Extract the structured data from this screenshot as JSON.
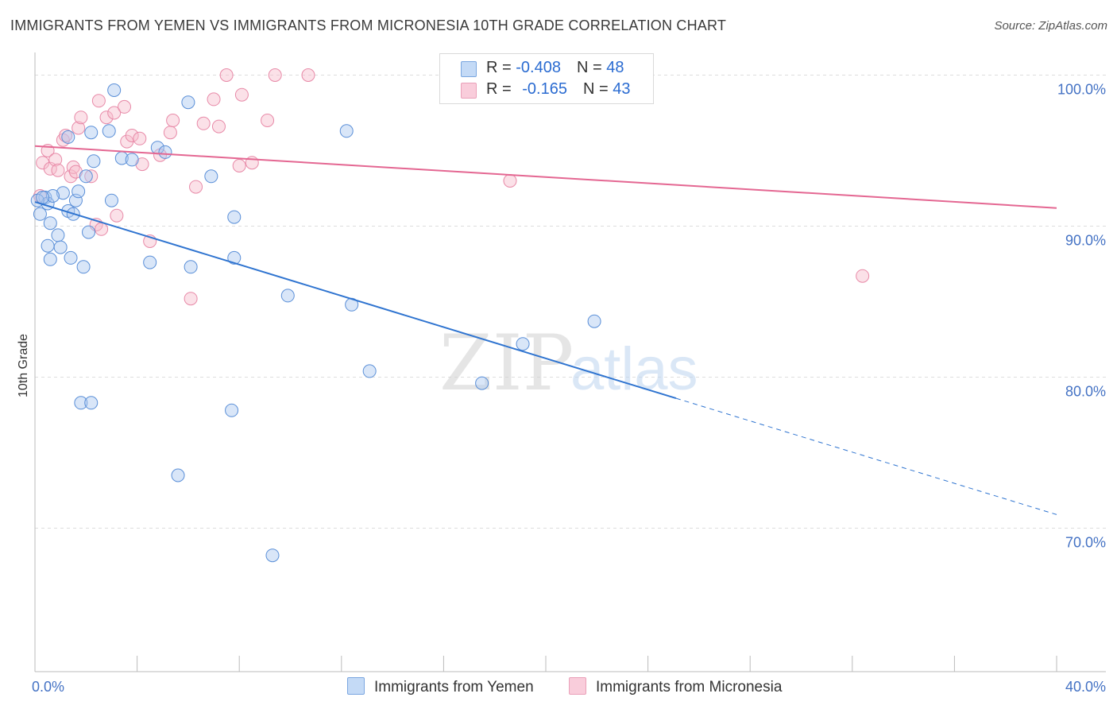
{
  "title": "IMMIGRANTS FROM YEMEN VS IMMIGRANTS FROM MICRONESIA 10TH GRADE CORRELATION CHART",
  "source": "Source: ZipAtlas.com",
  "watermark": {
    "zip": "ZIP",
    "atlas": "atlas"
  },
  "colors": {
    "blue_fill": "#aac8f0",
    "blue_stroke": "#5a8fd8",
    "blue_line": "#2f74d0",
    "pink_fill": "#f6bccd",
    "pink_stroke": "#e88aa8",
    "pink_line": "#e46792",
    "grid": "#dddddd",
    "tick_text": "#4472c4"
  },
  "legend": {
    "rows": [
      {
        "r_label": "R = ",
        "r_value": "-0.408",
        "n_label": "N = ",
        "n_value": "48"
      },
      {
        "r_label": "R = ",
        "r_value": "-0.165",
        "n_label": "N = ",
        "n_value": "43"
      }
    ]
  },
  "series_names": [
    "Immigrants from Yemen",
    "Immigrants from Micronesia"
  ],
  "chart_data": {
    "type": "scatter",
    "title": "IMMIGRANTS FROM YEMEN VS IMMIGRANTS FROM MICRONESIA 10TH GRADE CORRELATION CHART",
    "xlabel": "",
    "ylabel": "10th Grade",
    "xlim": [
      0,
      40
    ],
    "ylim": [
      60.5,
      101.5
    ],
    "x_tick_labels": [
      {
        "value": 0,
        "label": "0.0%"
      },
      {
        "value": 40,
        "label": "40.0%"
      }
    ],
    "y_ticks": [
      {
        "value": 100,
        "label": "100.0%"
      },
      {
        "value": 90,
        "label": "90.0%"
      },
      {
        "value": 80,
        "label": "80.0%"
      },
      {
        "value": 70,
        "label": "70.0%"
      }
    ],
    "series": [
      {
        "name": "Immigrants from Yemen",
        "color": "#aac8f0",
        "points": [
          [
            0.2,
            90.8
          ],
          [
            0.4,
            91.9
          ],
          [
            0.5,
            91.5
          ],
          [
            0.6,
            90.2
          ],
          [
            0.9,
            89.4
          ],
          [
            1.0,
            88.6
          ],
          [
            1.1,
            92.2
          ],
          [
            1.3,
            91.0
          ],
          [
            0.7,
            92.0
          ],
          [
            1.4,
            87.9
          ],
          [
            1.5,
            90.8
          ],
          [
            1.6,
            91.7
          ],
          [
            1.7,
            92.3
          ],
          [
            0.5,
            88.7
          ],
          [
            0.6,
            87.8
          ],
          [
            1.9,
            87.3
          ],
          [
            2.1,
            89.6
          ],
          [
            1.3,
            95.9
          ],
          [
            2.3,
            94.3
          ],
          [
            2.2,
            96.2
          ],
          [
            2.9,
            96.3
          ],
          [
            3.1,
            99.0
          ],
          [
            2.0,
            93.3
          ],
          [
            3.4,
            94.5
          ],
          [
            3.0,
            91.7
          ],
          [
            3.8,
            94.4
          ],
          [
            4.5,
            87.6
          ],
          [
            4.8,
            95.2
          ],
          [
            5.1,
            94.9
          ],
          [
            6.0,
            98.2
          ],
          [
            6.1,
            87.3
          ],
          [
            6.9,
            93.3
          ],
          [
            7.8,
            87.9
          ],
          [
            7.8,
            90.6
          ],
          [
            9.9,
            85.4
          ],
          [
            12.4,
            84.8
          ],
          [
            12.2,
            96.3
          ],
          [
            13.1,
            80.4
          ],
          [
            17.5,
            79.6
          ],
          [
            19.1,
            82.2
          ],
          [
            21.9,
            83.7
          ],
          [
            1.8,
            78.3
          ],
          [
            2.2,
            78.3
          ],
          [
            7.7,
            77.8
          ],
          [
            5.6,
            73.5
          ],
          [
            9.3,
            68.2
          ],
          [
            0.1,
            91.7
          ],
          [
            0.3,
            91.9
          ]
        ],
        "trend": {
          "x0": 0,
          "y0": 91.6,
          "x1": 25.1,
          "y1": 78.6,
          "dashed_to_x": 40,
          "dashed_to_y": 70.9
        }
      },
      {
        "name": "Immigrants from Micronesia",
        "color": "#f6bccd",
        "points": [
          [
            0.3,
            94.2
          ],
          [
            0.5,
            95.0
          ],
          [
            0.6,
            93.8
          ],
          [
            0.8,
            94.4
          ],
          [
            0.9,
            93.7
          ],
          [
            1.1,
            95.7
          ],
          [
            1.2,
            96.0
          ],
          [
            1.4,
            93.3
          ],
          [
            1.5,
            93.9
          ],
          [
            1.6,
            93.6
          ],
          [
            1.7,
            96.5
          ],
          [
            1.8,
            97.2
          ],
          [
            2.2,
            93.3
          ],
          [
            2.5,
            98.3
          ],
          [
            2.8,
            97.2
          ],
          [
            3.1,
            97.5
          ],
          [
            3.5,
            97.9
          ],
          [
            3.6,
            95.6
          ],
          [
            3.8,
            96.0
          ],
          [
            4.1,
            95.8
          ],
          [
            4.2,
            94.1
          ],
          [
            4.5,
            89.0
          ],
          [
            4.9,
            94.7
          ],
          [
            5.3,
            96.2
          ],
          [
            5.4,
            97.0
          ],
          [
            6.1,
            85.2
          ],
          [
            6.3,
            92.6
          ],
          [
            6.6,
            96.8
          ],
          [
            7.0,
            98.4
          ],
          [
            7.2,
            96.6
          ],
          [
            7.5,
            100.0
          ],
          [
            8.0,
            94.0
          ],
          [
            8.1,
            98.7
          ],
          [
            8.5,
            94.2
          ],
          [
            9.1,
            97.0
          ],
          [
            9.4,
            100.0
          ],
          [
            10.7,
            100.0
          ],
          [
            18.6,
            93.0
          ],
          [
            32.4,
            86.7
          ],
          [
            2.4,
            90.1
          ],
          [
            2.6,
            89.8
          ],
          [
            3.2,
            90.7
          ],
          [
            0.2,
            92.0
          ]
        ],
        "trend": {
          "x0": 0,
          "y0": 95.3,
          "x1": 40,
          "y1": 91.2
        }
      }
    ]
  }
}
